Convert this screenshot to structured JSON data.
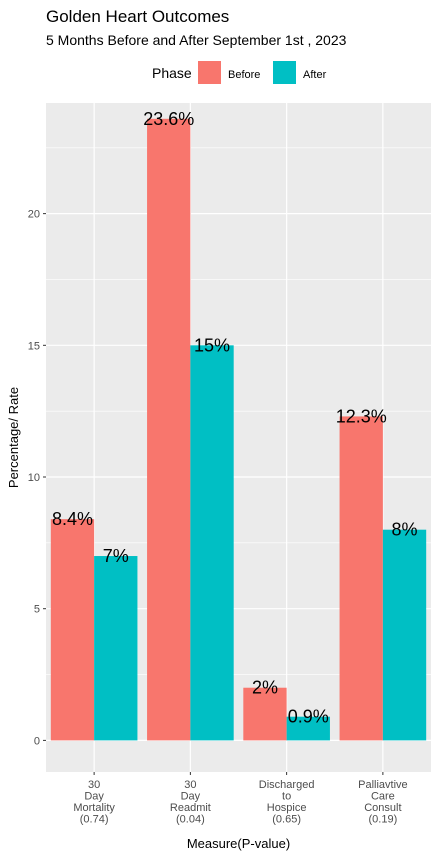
{
  "chart_data": {
    "type": "bar",
    "title": "Golden Heart Outcomes",
    "subtitle": "5 Months Before and After September 1st , 2023",
    "xlabel": "Measure(P-value)",
    "ylabel": "Percentage/ Rate",
    "ylim": [
      -1.2,
      24.2
    ],
    "yticks": [
      0,
      5,
      10,
      15,
      20
    ],
    "grid": true,
    "legend": {
      "title": "Phase",
      "position": "top"
    },
    "categories": [
      [
        "30",
        "Day",
        "Mortality",
        "(0.74)"
      ],
      [
        "30",
        "Day",
        "Readmit",
        "(0.04)"
      ],
      [
        "Discharged",
        "to",
        "Hospice",
        "(0.65)"
      ],
      [
        "Palliavtive",
        "Care",
        "Consult",
        "(0.19)"
      ]
    ],
    "series": [
      {
        "name": "Before",
        "color": "#F8766D",
        "values": [
          8.4,
          23.6,
          2,
          12.3
        ],
        "labels": [
          "8.4%",
          "23.6%",
          "2%",
          "12.3%"
        ]
      },
      {
        "name": "After",
        "color": "#00BFC4",
        "values": [
          7,
          15,
          0.9,
          8
        ],
        "labels": [
          "7%",
          "15%",
          "0.9%",
          "8%"
        ]
      }
    ]
  }
}
